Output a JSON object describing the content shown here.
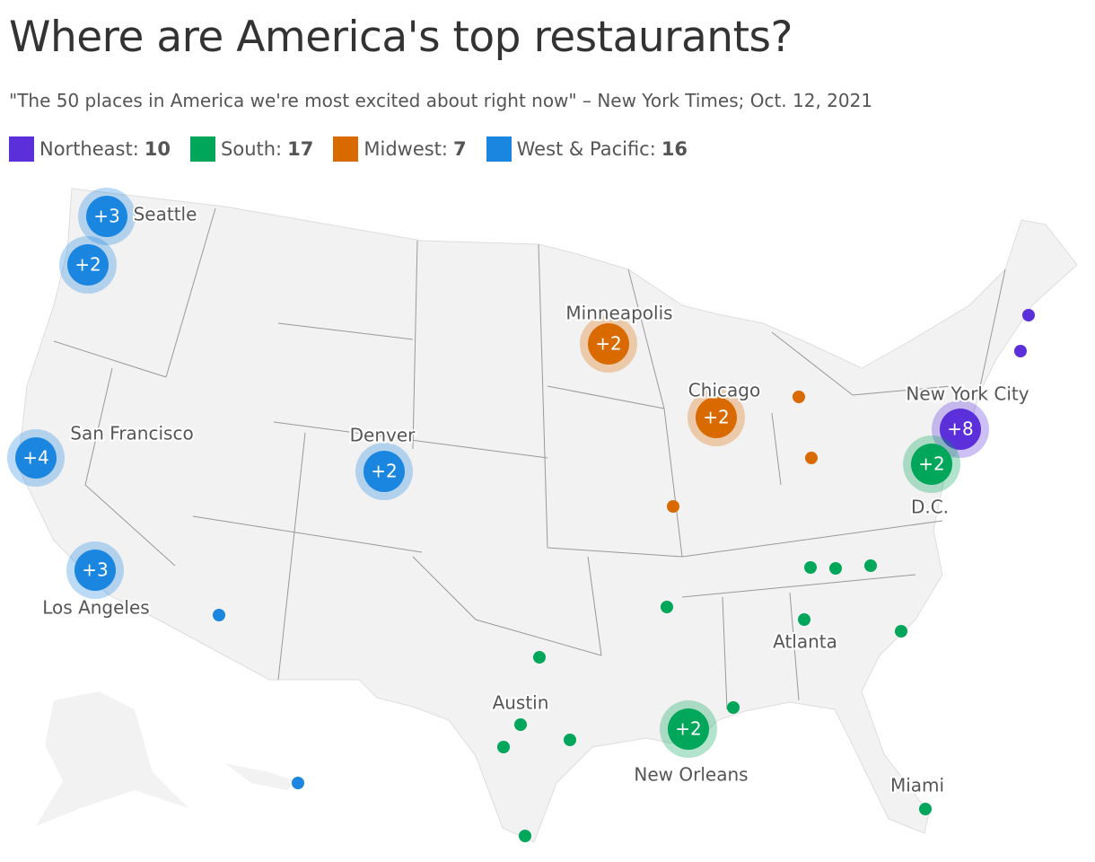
{
  "header": {
    "title": "Where are America's top restaurants?",
    "subtitle": "\"The 50 places in America we're most excited about right now\" – New York Times; Oct. 12, 2021"
  },
  "legend": [
    {
      "name": "Northeast:",
      "count": 10,
      "color": "#5b2fd9"
    },
    {
      "name": "South:",
      "count": 17,
      "color": "#00a65a"
    },
    {
      "name": "Midwest:",
      "count": 7,
      "color": "#d96a00"
    },
    {
      "name": "West & Pacific:",
      "count": 16,
      "color": "#1a86e0"
    }
  ],
  "clusters": [
    {
      "label": "+3"
    },
    {
      "label": "+2"
    },
    {
      "label": "+4"
    },
    {
      "label": "+3"
    },
    {
      "label": "+2"
    },
    {
      "label": "+2"
    },
    {
      "label": "+2"
    },
    {
      "label": "+8"
    },
    {
      "label": "+2"
    },
    {
      "label": "+2"
    }
  ],
  "cities": [
    "Seattle",
    "Minneapolis",
    "Chicago",
    "New York City",
    "San Francisco",
    "Denver",
    "D.C.",
    "Los Angeles",
    "Atlanta",
    "Austin",
    "New Orleans",
    "Miami"
  ]
}
